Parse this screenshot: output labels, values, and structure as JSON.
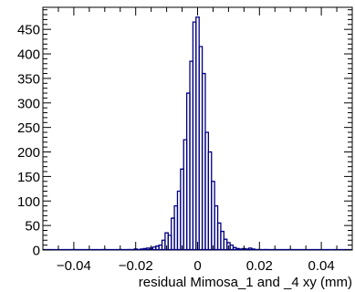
{
  "chart_data": {
    "type": "histogram",
    "xlabel": "residual Mimosa_1 and _4 xy (mm)",
    "ylabel": "",
    "title": "",
    "xlim": [
      -0.05,
      0.05
    ],
    "ylim": [
      0,
      495
    ],
    "grid": false,
    "line_color": "#000080",
    "bin_width": 0.001,
    "x_ticks": [
      -0.04,
      -0.02,
      0,
      0.02,
      0.04
    ],
    "x_tick_labels": [
      "−0.04",
      "−0.02",
      "0",
      "0.02",
      "0.04"
    ],
    "y_ticks": [
      0,
      50,
      100,
      150,
      200,
      250,
      300,
      350,
      400,
      450
    ],
    "y_tick_labels": [
      "0",
      "50",
      "100",
      "150",
      "200",
      "250",
      "300",
      "350",
      "400",
      "450"
    ],
    "bins": [
      {
        "x": -0.04,
        "y": 1
      },
      {
        "x": -0.03,
        "y": 1
      },
      {
        "x": -0.025,
        "y": 1
      },
      {
        "x": -0.022,
        "y": 1
      },
      {
        "x": -0.02,
        "y": 2
      },
      {
        "x": -0.019,
        "y": 1
      },
      {
        "x": -0.018,
        "y": 2
      },
      {
        "x": -0.017,
        "y": 3
      },
      {
        "x": -0.016,
        "y": 4
      },
      {
        "x": -0.015,
        "y": 4
      },
      {
        "x": -0.014,
        "y": 6
      },
      {
        "x": -0.013,
        "y": 8
      },
      {
        "x": -0.012,
        "y": 10
      },
      {
        "x": -0.011,
        "y": 20
      },
      {
        "x": -0.01,
        "y": 35
      },
      {
        "x": -0.009,
        "y": 30
      },
      {
        "x": -0.008,
        "y": 65
      },
      {
        "x": -0.007,
        "y": 90
      },
      {
        "x": -0.006,
        "y": 120
      },
      {
        "x": -0.005,
        "y": 165
      },
      {
        "x": -0.004,
        "y": 225
      },
      {
        "x": -0.003,
        "y": 320
      },
      {
        "x": -0.002,
        "y": 385
      },
      {
        "x": -0.001,
        "y": 465
      },
      {
        "x": 0.0,
        "y": 475
      },
      {
        "x": 0.001,
        "y": 415
      },
      {
        "x": 0.002,
        "y": 360
      },
      {
        "x": 0.003,
        "y": 240
      },
      {
        "x": 0.004,
        "y": 200
      },
      {
        "x": 0.005,
        "y": 140
      },
      {
        "x": 0.006,
        "y": 90
      },
      {
        "x": 0.007,
        "y": 55
      },
      {
        "x": 0.008,
        "y": 38
      },
      {
        "x": 0.009,
        "y": 22
      },
      {
        "x": 0.01,
        "y": 15
      },
      {
        "x": 0.011,
        "y": 10
      },
      {
        "x": 0.012,
        "y": 5
      },
      {
        "x": 0.013,
        "y": 3
      },
      {
        "x": 0.014,
        "y": 2
      },
      {
        "x": 0.015,
        "y": 3
      },
      {
        "x": 0.016,
        "y": 2
      },
      {
        "x": 0.017,
        "y": 4
      },
      {
        "x": 0.018,
        "y": 2
      },
      {
        "x": 0.019,
        "y": 1
      },
      {
        "x": 0.02,
        "y": 1
      },
      {
        "x": 0.022,
        "y": 1
      },
      {
        "x": 0.025,
        "y": 1
      },
      {
        "x": 0.03,
        "y": 1
      }
    ]
  }
}
